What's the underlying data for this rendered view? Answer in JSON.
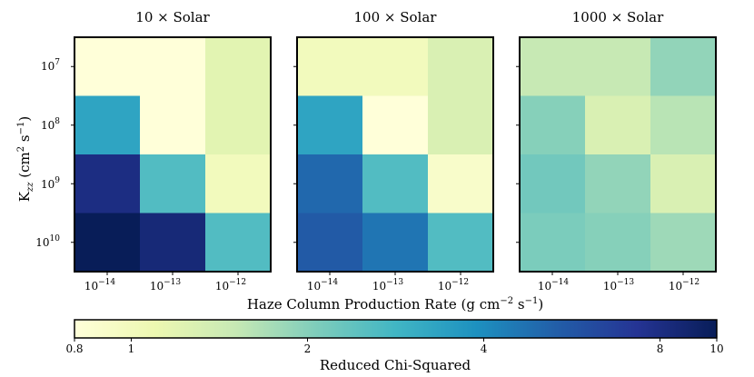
{
  "chart_data": {
    "type": "heatmap",
    "panels": [
      {
        "title": "10 × Solar",
        "values": [
          [
            0.8,
            0.8,
            1.2
          ],
          [
            3.3,
            0.8,
            1.2
          ],
          [
            8.0,
            2.6,
            1.0
          ],
          [
            10.0,
            8.5,
            2.6
          ]
        ]
      },
      {
        "title": "100 × Solar",
        "values": [
          [
            1.0,
            1.0,
            1.3
          ],
          [
            3.3,
            0.8,
            1.3
          ],
          [
            5.0,
            2.6,
            0.9
          ],
          [
            5.5,
            4.6,
            2.6
          ]
        ]
      },
      {
        "title": "1000 × Solar",
        "values": [
          [
            1.5,
            1.5,
            1.9
          ],
          [
            2.0,
            1.3,
            1.6
          ],
          [
            2.2,
            1.9,
            1.3
          ],
          [
            2.1,
            2.0,
            1.8
          ]
        ]
      }
    ],
    "x_ticks": [
      {
        "base": "10",
        "exp": "−14"
      },
      {
        "base": "10",
        "exp": "−13"
      },
      {
        "base": "10",
        "exp": "−12"
      }
    ],
    "y_ticks": [
      {
        "base": "10",
        "exp": "7"
      },
      {
        "base": "10",
        "exp": "8"
      },
      {
        "base": "10",
        "exp": "9"
      },
      {
        "base": "10",
        "exp": "10"
      }
    ],
    "xlabel": {
      "main": "Haze Column Production Rate (g cm",
      "e1": "−2",
      "mid": " s",
      "e2": "−1",
      "end": ")"
    },
    "ylabel": {
      "k": "K",
      "sub": "zz",
      "mid": " (cm",
      "e1": "2",
      "mid2": " s",
      "e2": "−1",
      "end": ")"
    },
    "colorbar": {
      "label": "Reduced Chi-Squared",
      "scale": "log",
      "range": [
        0.8,
        10
      ],
      "ticks": [
        0.8,
        1,
        2,
        4,
        8,
        10
      ],
      "tick_labels": [
        "0.8",
        "1",
        "2",
        "4",
        "8",
        "10"
      ]
    },
    "colors": {
      "stops": [
        "#ffffd9",
        "#edf8b1",
        "#c7e9b4",
        "#7fcdbb",
        "#41b6c4",
        "#1d91c0",
        "#225ea8",
        "#253494",
        "#081d58"
      ],
      "frame": "#000000"
    }
  }
}
